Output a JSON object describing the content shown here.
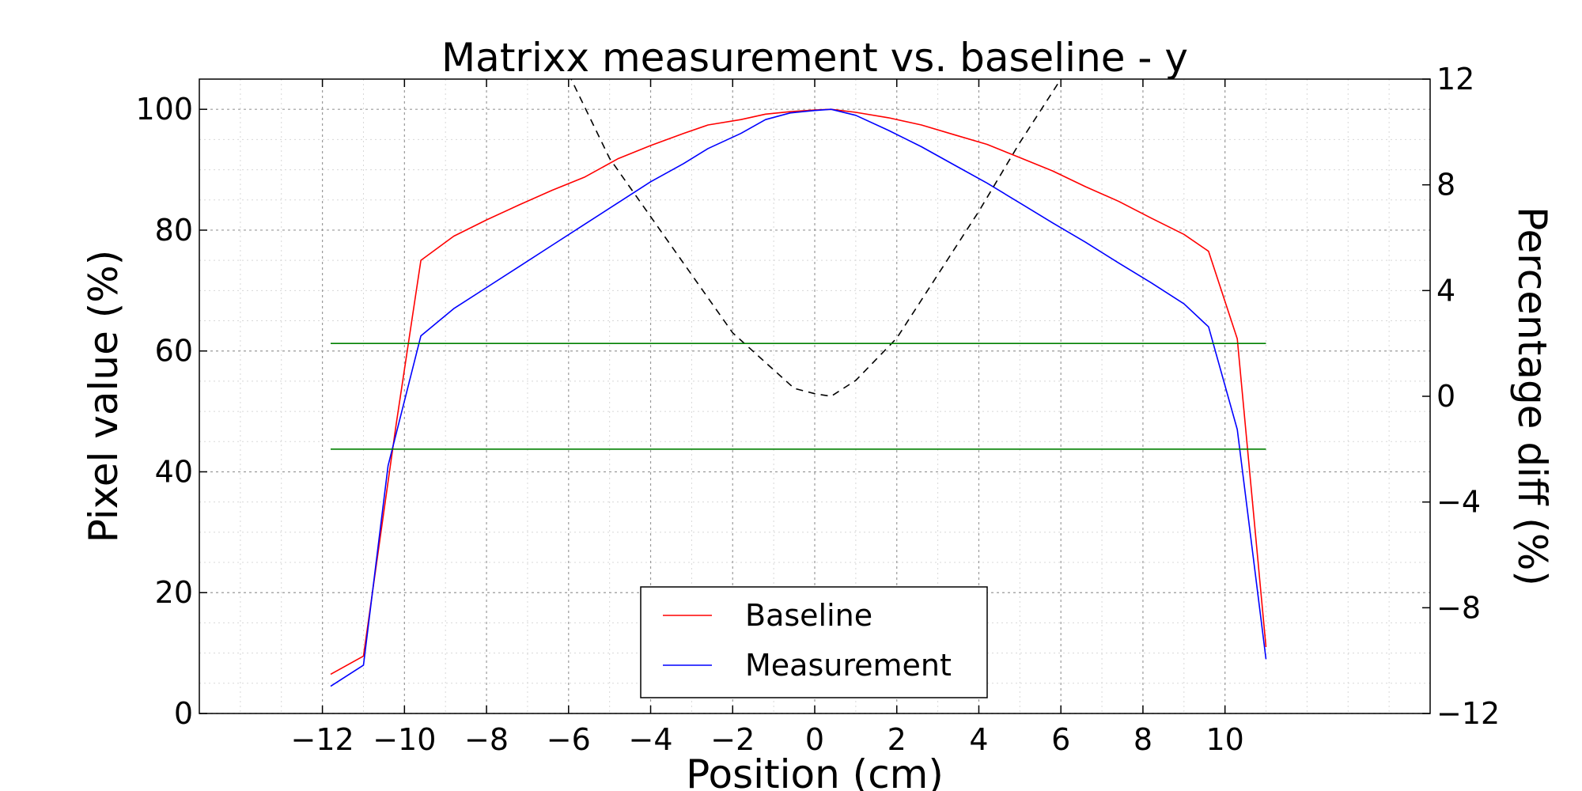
{
  "chart_data": {
    "type": "line",
    "title": "Matrixx measurement vs. baseline - y",
    "xlabel": "Position (cm)",
    "ylabel": "Pixel value (%)",
    "y2label": "Percentage diff (%)",
    "xlim": [
      -15,
      15
    ],
    "ylim": [
      0,
      105
    ],
    "y2lim": [
      -12,
      12
    ],
    "xticks": [
      -12,
      -10,
      -8,
      -6,
      -4,
      -2,
      0,
      2,
      4,
      6,
      8,
      10
    ],
    "yticks": [
      0,
      20,
      40,
      60,
      80,
      100
    ],
    "y2ticks": [
      -12,
      -8,
      -4,
      0,
      4,
      8,
      12
    ],
    "grid": true,
    "legend_position": "lower center",
    "colors": {
      "baseline": "#ff0000",
      "measurement": "#0000ff",
      "diff": "#000000",
      "tolerance": "#008000"
    },
    "series": [
      {
        "name": "Baseline",
        "axis": "left",
        "x": [
          -11.8,
          -11.0,
          -10.2,
          -9.6,
          -8.8,
          -8.0,
          -7.2,
          -6.4,
          -5.6,
          -4.8,
          -4.0,
          -3.2,
          -2.6,
          -1.8,
          -1.2,
          -0.6,
          0.0,
          0.4,
          1.0,
          1.8,
          2.6,
          3.4,
          4.2,
          5.0,
          5.8,
          6.6,
          7.4,
          8.2,
          9.0,
          9.6,
          10.3,
          11.0
        ],
        "y": [
          6.5,
          9.5,
          48.0,
          75.0,
          79.0,
          81.7,
          84.2,
          86.6,
          88.8,
          91.8,
          94.0,
          96.0,
          97.4,
          98.3,
          99.2,
          99.6,
          99.9,
          100.0,
          99.5,
          98.6,
          97.4,
          95.8,
          94.2,
          92.0,
          89.8,
          87.2,
          84.8,
          82.0,
          79.3,
          76.5,
          62.0,
          11.0
        ]
      },
      {
        "name": "Measurement",
        "axis": "left",
        "x": [
          -11.8,
          -11.0,
          -10.4,
          -9.6,
          -8.8,
          -8.0,
          -7.2,
          -6.4,
          -5.6,
          -4.8,
          -4.0,
          -3.2,
          -2.6,
          -1.8,
          -1.2,
          -0.6,
          0.0,
          0.4,
          1.0,
          1.8,
          2.6,
          3.4,
          4.2,
          5.0,
          5.8,
          6.6,
          7.4,
          8.2,
          9.0,
          9.6,
          10.3,
          11.0
        ],
        "y": [
          4.5,
          8.0,
          41.0,
          62.5,
          67.0,
          70.5,
          74.0,
          77.5,
          81.0,
          84.5,
          88.0,
          91.0,
          93.5,
          96.0,
          98.3,
          99.4,
          99.8,
          100.0,
          99.0,
          96.5,
          93.8,
          90.8,
          87.8,
          84.5,
          81.2,
          78.0,
          74.6,
          71.3,
          67.8,
          64.0,
          47.0,
          9.0
        ]
      },
      {
        "axis": "right",
        "x": [
          -6.0,
          -5.0,
          -4.0,
          -3.0,
          -2.0,
          -1.0,
          -0.5,
          0.0,
          0.4,
          1.0,
          2.0,
          3.0,
          4.0,
          5.0,
          6.0
        ],
        "y": [
          12.2,
          9.0,
          6.8,
          4.6,
          2.4,
          1.0,
          0.3,
          0.1,
          0.0,
          0.6,
          2.2,
          4.6,
          7.0,
          9.6,
          12.0
        ]
      },
      {
        "axis": "right",
        "x": [
          -11.8,
          11.0
        ],
        "y": [
          2.0,
          2.0
        ]
      },
      {
        "axis": "right",
        "x": [
          -11.8,
          11.0
        ],
        "y": [
          -2.0,
          -2.0
        ]
      }
    ]
  }
}
